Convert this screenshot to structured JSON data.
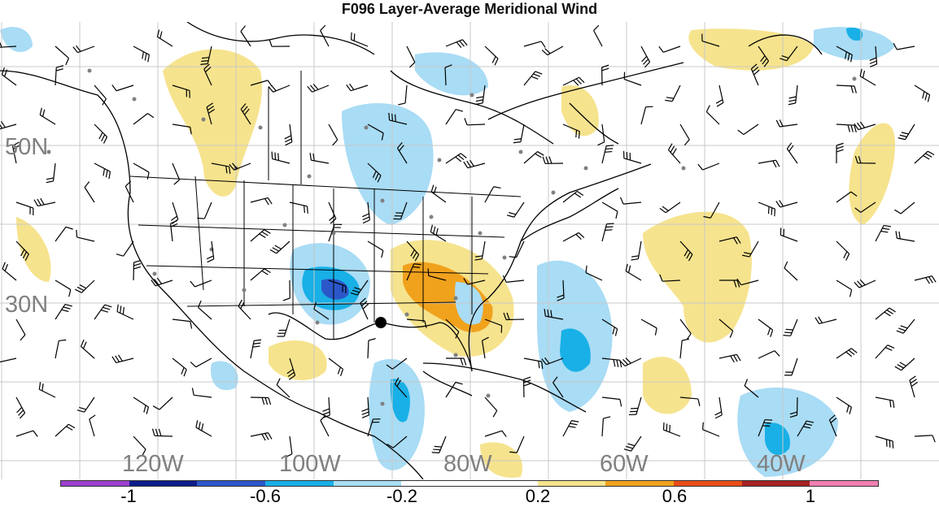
{
  "title": "F096 Layer-Average Meridional Wind",
  "lat_labels": [
    "50N",
    "30N"
  ],
  "lon_labels": [
    "120W",
    "100W",
    "80W",
    "60W",
    "40W"
  ],
  "colorbar": {
    "colors": [
      "#9c3fcf",
      "#0c1e8a",
      "#2b57c9",
      "#18b0e6",
      "#a9dcf5",
      "#ffffff",
      "#ffffff",
      "#f6e38d",
      "#f0a21d",
      "#e84d16",
      "#a52222",
      "#ef7fb1"
    ],
    "labels": [
      "-1",
      "-0.6",
      "-0.2",
      "0.2",
      "0.6",
      "1"
    ]
  }
}
